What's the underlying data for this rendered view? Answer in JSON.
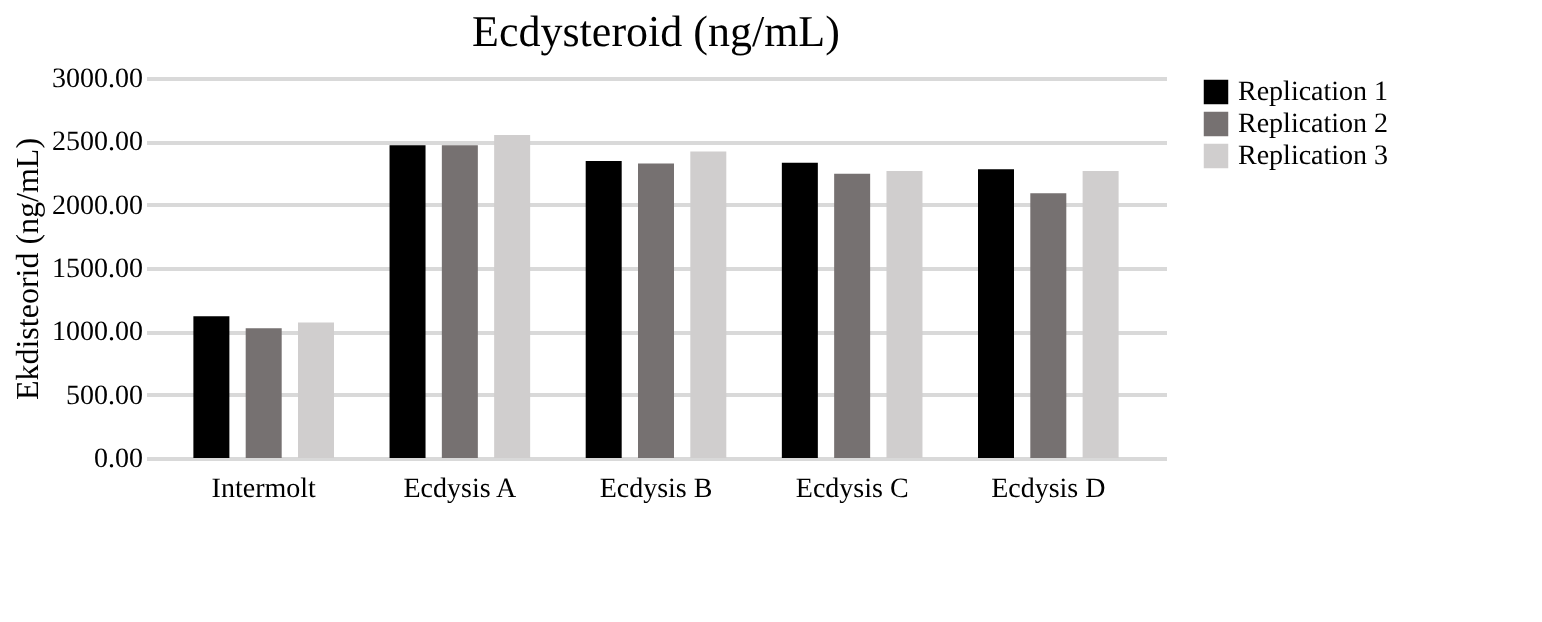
{
  "chart_data": {
    "type": "bar",
    "title": "Ecdysteroid  (ng/mL)",
    "ylabel": "Ekdisteorid (ng/mL)",
    "categories": [
      "Intermolt",
      "Ecdysis A",
      "Ecdysis B",
      "Ecdysis C",
      "Ecdysis D"
    ],
    "series": [
      {
        "name": "Replication 1",
        "color": "#000000",
        "values": [
          1120,
          2470,
          2345,
          2330,
          2280
        ]
      },
      {
        "name": "Replication 2",
        "color": "#767171",
        "values": [
          1025,
          2470,
          2325,
          2245,
          2090
        ]
      },
      {
        "name": "Replication 3",
        "color": "#d0cece",
        "values": [
          1070,
          2550,
          2420,
          2265,
          2265
        ]
      }
    ],
    "ylim": [
      0,
      3000
    ],
    "yticks": [
      {
        "value": 0,
        "label": "0.00"
      },
      {
        "value": 500,
        "label": "500.00"
      },
      {
        "value": 1000,
        "label": "1000.00"
      },
      {
        "value": 1500,
        "label": "1500.00"
      },
      {
        "value": 2000,
        "label": "2000.00"
      },
      {
        "value": 2500,
        "label": "2500.00"
      },
      {
        "value": 3000,
        "label": "3000.00"
      }
    ],
    "grid": "y",
    "legend": "right"
  }
}
